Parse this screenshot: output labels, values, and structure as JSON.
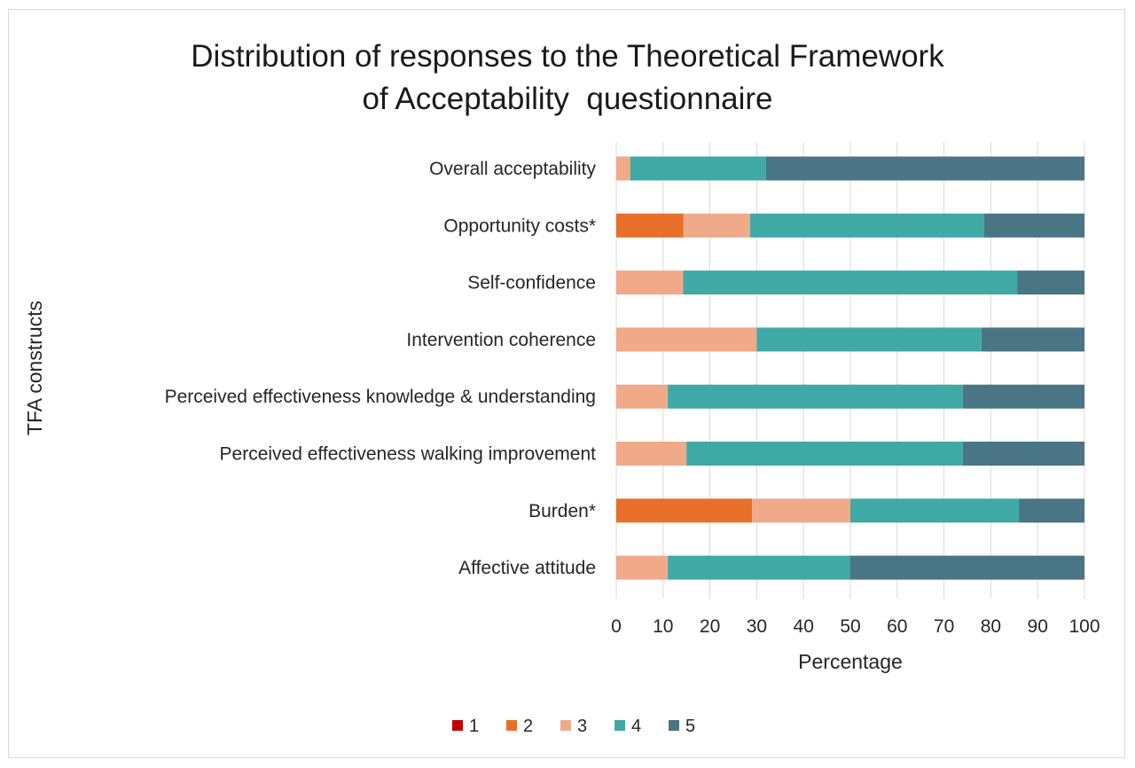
{
  "chart_data": {
    "type": "bar",
    "orientation": "horizontal",
    "stacked": true,
    "title": [
      "Distribution of responses to the Theoretical Framework",
      "of Acceptability  questionnaire"
    ],
    "xlabel": "Percentage",
    "ylabel": "TFA constructs",
    "xlim": [
      0,
      100
    ],
    "xticks": [
      "0",
      "10",
      "20",
      "30",
      "40",
      "50",
      "60",
      "70",
      "80",
      "90",
      "100"
    ],
    "grid": true,
    "legend_position": "bottom",
    "categories": [
      "Overall acceptability",
      "Opportunity costs*",
      "Self-confidence",
      "Intervention coherence",
      "Perceived effectiveness knowledge & understanding",
      "Perceived effectiveness walking improvement",
      "Burden*",
      "Affective attitude"
    ],
    "series": [
      {
        "name": "1",
        "color": "#c00000",
        "values": [
          0,
          0,
          0,
          0,
          0,
          0,
          0,
          0
        ]
      },
      {
        "name": "2",
        "color": "#e8702a",
        "values": [
          0,
          14.3,
          0,
          0,
          0,
          0,
          29,
          0
        ]
      },
      {
        "name": "3",
        "color": "#f0a989",
        "values": [
          3,
          14.3,
          14.3,
          30,
          11,
          15,
          21,
          11
        ]
      },
      {
        "name": "4",
        "color": "#3fa9a5",
        "values": [
          29,
          50,
          71.4,
          48,
          63,
          59,
          36,
          39
        ]
      },
      {
        "name": "5",
        "color": "#4a7584",
        "values": [
          68,
          21.4,
          14.3,
          22,
          26,
          26,
          14,
          50
        ]
      }
    ]
  }
}
